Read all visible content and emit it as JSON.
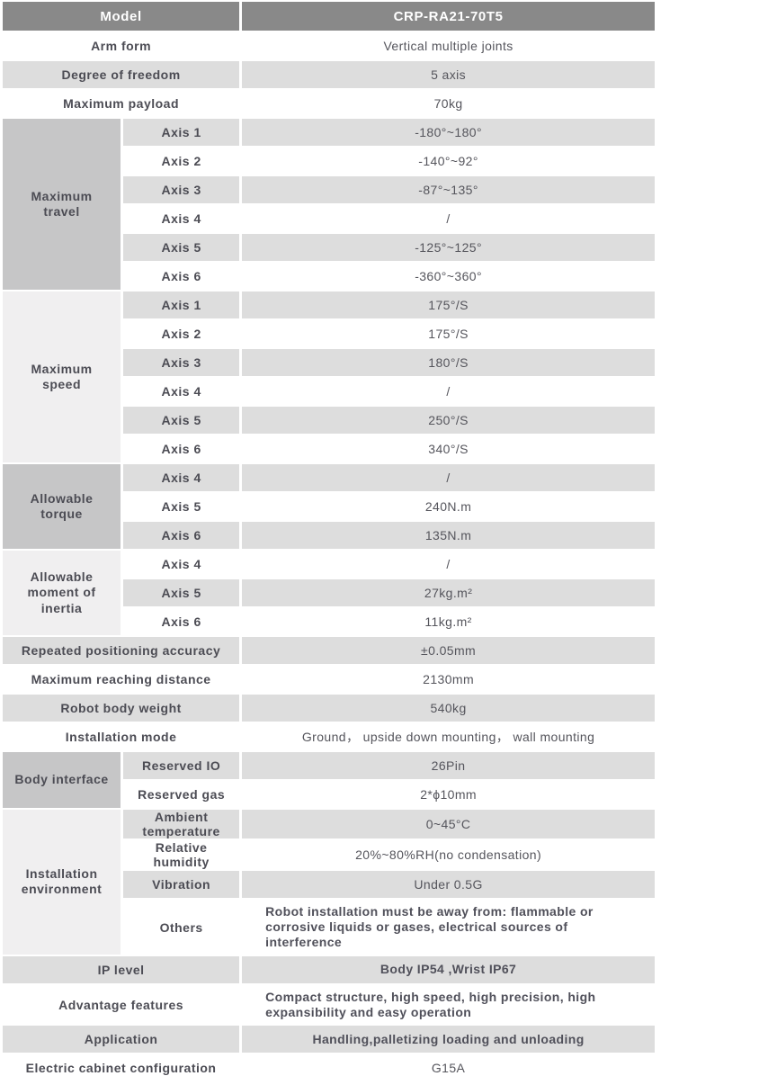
{
  "colors": {
    "header_bg": "#898989",
    "header_text": "#ffffff",
    "group_dark_bg": "#c6c6c7",
    "group_light_bg": "#f0eff0",
    "row_gray_bg": "#dddddd",
    "row_white_bg": "#ffffff",
    "label_text": "#4c4c54",
    "value_text": "#55555c"
  },
  "header": {
    "model_label": "Model",
    "model_value": "CRP-RA21-70T5"
  },
  "rows": [
    {
      "label": "Arm form",
      "value": "Vertical multiple joints",
      "shade": "white",
      "wide": true
    },
    {
      "label": "Degree of freedom",
      "value": "5 axis",
      "shade": "gray",
      "wide": true
    },
    {
      "label": "Maximum payload",
      "value": "70kg",
      "shade": "white",
      "wide": true
    },
    {
      "group": "Maximum travel",
      "group_span": 6,
      "group_tone": "dark",
      "label": "Axis 1",
      "value": "-180°~180°",
      "shade": "gray"
    },
    {
      "label": "Axis 2",
      "value": "-140°~92°",
      "shade": "white"
    },
    {
      "label": "Axis 3",
      "value": "-87°~135°",
      "shade": "gray"
    },
    {
      "label": "Axis 4",
      "value": "/",
      "shade": "white"
    },
    {
      "label": "Axis 5",
      "value": "-125°~125°",
      "shade": "gray"
    },
    {
      "label": "Axis 6",
      "value": "-360°~360°",
      "shade": "white"
    },
    {
      "group": "Maximum speed",
      "group_span": 6,
      "group_tone": "light",
      "label": "Axis 1",
      "value": "175°/S",
      "shade": "gray"
    },
    {
      "label": "Axis 2",
      "value": "175°/S",
      "shade": "white"
    },
    {
      "label": "Axis 3",
      "value": "180°/S",
      "shade": "gray"
    },
    {
      "label": "Axis 4",
      "value": "/",
      "shade": "white"
    },
    {
      "label": "Axis 5",
      "value": "250°/S",
      "shade": "gray"
    },
    {
      "label": "Axis 6",
      "value": "340°/S",
      "shade": "white"
    },
    {
      "group": "Allowable torque",
      "group_span": 3,
      "group_tone": "dark",
      "label": "Axis 4",
      "value": "/",
      "shade": "gray"
    },
    {
      "label": "Axis 5",
      "value": "240N.m",
      "shade": "white"
    },
    {
      "label": "Axis 6",
      "value": "135N.m",
      "shade": "gray"
    },
    {
      "group": "Allowable moment of inertia",
      "group_span": 3,
      "group_tone": "light",
      "label": "Axis 4",
      "value": "/",
      "shade": "white"
    },
    {
      "label": "Axis 5",
      "value": "27kg.m²",
      "shade": "gray"
    },
    {
      "label": "Axis 6",
      "value": "11kg.m²",
      "shade": "white"
    },
    {
      "label": "Repeated positioning accuracy",
      "value": "±0.05mm",
      "shade": "gray",
      "wide": true
    },
    {
      "label": "Maximum reaching distance",
      "value": "2130mm",
      "shade": "white",
      "wide": true
    },
    {
      "label": "Robot body weight",
      "value": "540kg",
      "shade": "gray",
      "wide": true
    },
    {
      "label": "Installation mode",
      "value": "Ground， upside down mounting， wall mounting",
      "shade": "white",
      "wide": true
    },
    {
      "group": "Body interface",
      "group_span": 2,
      "group_tone": "dark",
      "label": "Reserved IO",
      "value": "26Pin",
      "shade": "gray"
    },
    {
      "label": "Reserved gas",
      "value": "2*ϕ10mm",
      "shade": "white"
    },
    {
      "group": "Installation environment",
      "group_span": 4,
      "group_tone": "light",
      "label": "Ambient temperature",
      "value": "0~45°C",
      "shade": "gray"
    },
    {
      "label": "Relative humidity",
      "value": "20%~80%RH(no condensation)",
      "shade": "white"
    },
    {
      "label": "Vibration",
      "value": "Under 0.5G",
      "shade": "gray"
    },
    {
      "label": "Others",
      "value": "Robot installation must be away from: flammable or corrosive liquids or gases, electrical sources of interference",
      "shade": "white",
      "value_align": "left",
      "value_bold": true
    },
    {
      "label": "IP level",
      "value": "Body IP54 ,Wrist IP67",
      "shade": "gray",
      "wide": true,
      "value_bold": true
    },
    {
      "label": "Advantage features",
      "value": "Compact structure, high speed, high precision, high expansibility and easy operation",
      "shade": "white",
      "wide": true,
      "value_align": "left",
      "value_bold": true
    },
    {
      "label": "Application",
      "value": "Handling,palletizing loading and unloading",
      "shade": "gray",
      "wide": true,
      "value_bold": true
    },
    {
      "label": "Electric cabinet configuration",
      "value": "G15A",
      "shade": "white",
      "wide": true
    }
  ]
}
